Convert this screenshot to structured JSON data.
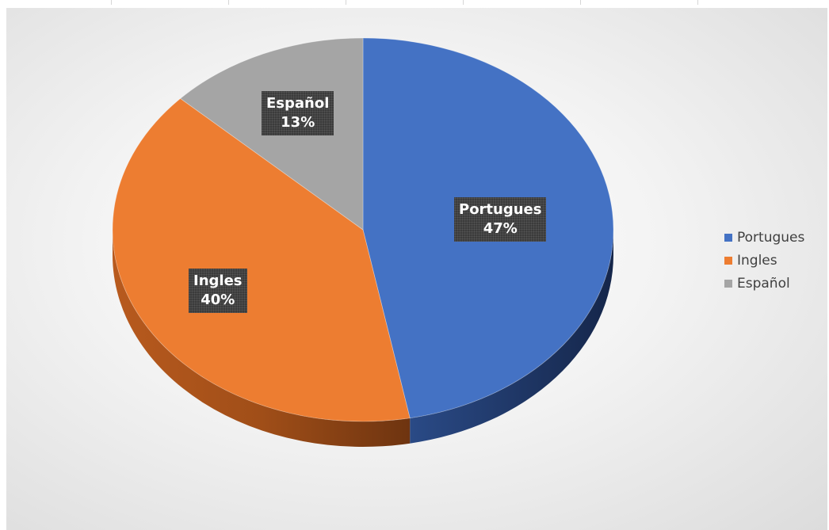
{
  "chart_data": {
    "type": "pie",
    "style": "3d",
    "title": "",
    "categories": [
      "Portugues",
      "Ingles",
      "Español"
    ],
    "values": [
      47,
      40,
      13
    ],
    "unit": "%",
    "labels": [
      {
        "name": "Portugues",
        "value": "47%"
      },
      {
        "name": "Ingles",
        "value": "40%"
      },
      {
        "name": "Español",
        "value": "13%"
      }
    ],
    "colors": {
      "Portugues": {
        "top": "#4472c4",
        "side": "#203864"
      },
      "Ingles": {
        "top": "#ed7d31",
        "side": "#8f4418"
      },
      "Español": {
        "top": "#a5a5a5",
        "side": "#6e6e6e"
      }
    },
    "legend": {
      "placement": "right",
      "entries": [
        "Portugues",
        "Ingles",
        "Español"
      ]
    }
  }
}
